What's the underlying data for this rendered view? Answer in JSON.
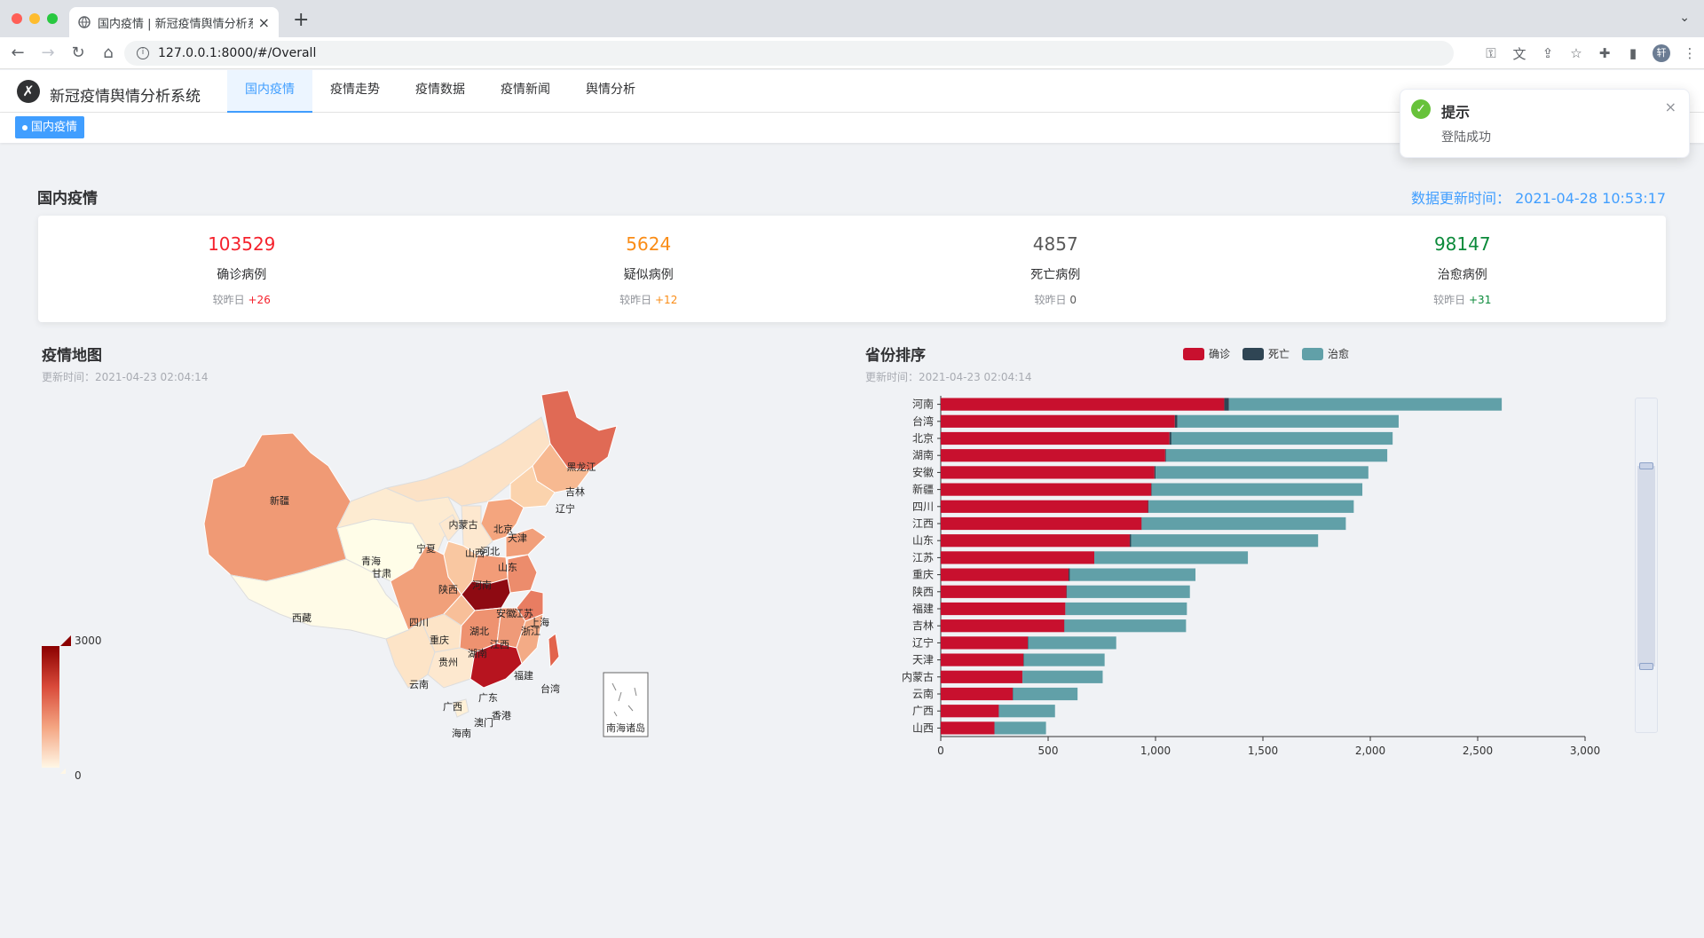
{
  "browser": {
    "tab_title": "国内疫情 | 新冠疫情舆情分析系统",
    "url": "127.0.0.1:8000/#/Overall",
    "avatar_text": "轩"
  },
  "app": {
    "logo_glyph": "✗",
    "title": "新冠疫情舆情分析系统",
    "nav": [
      {
        "label": "国内疫情",
        "active": true
      },
      {
        "label": "疫情走势",
        "active": false
      },
      {
        "label": "疫情数据",
        "active": false
      },
      {
        "label": "疫情新闻",
        "active": false
      },
      {
        "label": "舆情分析",
        "active": false
      }
    ],
    "tag_label": "国内疫情"
  },
  "summary": {
    "title": "国内疫情",
    "update_label": "数据更新时间：",
    "update_time": "2021-04-28 10:53:17",
    "compare_label": "较昨日",
    "stats": [
      {
        "value": "103529",
        "label": "确诊病例",
        "delta": "+26",
        "color": "#f5222d"
      },
      {
        "value": "5624",
        "label": "疑似病例",
        "delta": "+12",
        "color": "#fa8c16"
      },
      {
        "value": "4857",
        "label": "死亡病例",
        "delta": "0",
        "color": "#595959"
      },
      {
        "value": "98147",
        "label": "治愈病例",
        "delta": "+31",
        "color": "#0b8a3a"
      }
    ]
  },
  "map_panel": {
    "title": "疫情地图",
    "subtitle": "更新时间：2021-04-23 02:04:14",
    "visual_map_max": "3000",
    "visual_map_min": "0",
    "inset_label": "南海诸岛",
    "province_labels": [
      "新疆",
      "西藏",
      "青海",
      "甘肃",
      "宁夏",
      "内蒙古",
      "黑龙江",
      "吉林",
      "辽宁",
      "北京",
      "天津",
      "河北",
      "山西",
      "山东",
      "陕西",
      "河南",
      "安徽",
      "江苏",
      "上海",
      "浙江",
      "湖北",
      "四川",
      "重庆",
      "贵州",
      "湖南",
      "江西",
      "福建",
      "台湾",
      "云南",
      "广西",
      "广东",
      "香港",
      "澳门",
      "海南"
    ]
  },
  "bar_panel": {
    "title": "省份排序",
    "subtitle": "更新时间：2021-04-23 02:04:14"
  },
  "chart_data": {
    "type": "bar",
    "orientation": "horizontal",
    "stacked": true,
    "categories": [
      "河南",
      "台湾",
      "北京",
      "湖南",
      "安徽",
      "新疆",
      "四川",
      "江西",
      "山东",
      "江苏",
      "重庆",
      "陕西",
      "福建",
      "吉林",
      "辽宁",
      "天津",
      "内蒙古",
      "云南",
      "广西",
      "山西"
    ],
    "series": [
      {
        "name": "确诊",
        "color": "#c8102e",
        "values": [
          1320,
          1090,
          1065,
          1045,
          995,
          980,
          965,
          935,
          880,
          715,
          595,
          585,
          580,
          575,
          405,
          385,
          380,
          335,
          270,
          250
        ]
      },
      {
        "name": "死亡",
        "color": "#2f4554",
        "values": [
          22,
          12,
          9,
          4,
          6,
          3,
          3,
          1,
          7,
          0,
          6,
          3,
          1,
          2,
          2,
          3,
          1,
          2,
          2,
          0
        ]
      },
      {
        "name": "治愈",
        "color": "#61a0a8",
        "values": [
          1270,
          1030,
          1030,
          1030,
          990,
          980,
          955,
          950,
          870,
          715,
          585,
          572,
          565,
          565,
          410,
          375,
          373,
          300,
          260,
          240
        ]
      }
    ],
    "xlim": [
      0,
      3000
    ],
    "xticks": [
      "0",
      "500",
      "1,000",
      "1,500",
      "2,000",
      "2,500",
      "3,000"
    ],
    "legend_position": "top"
  },
  "notification": {
    "title": "提示",
    "message": "登陆成功"
  }
}
